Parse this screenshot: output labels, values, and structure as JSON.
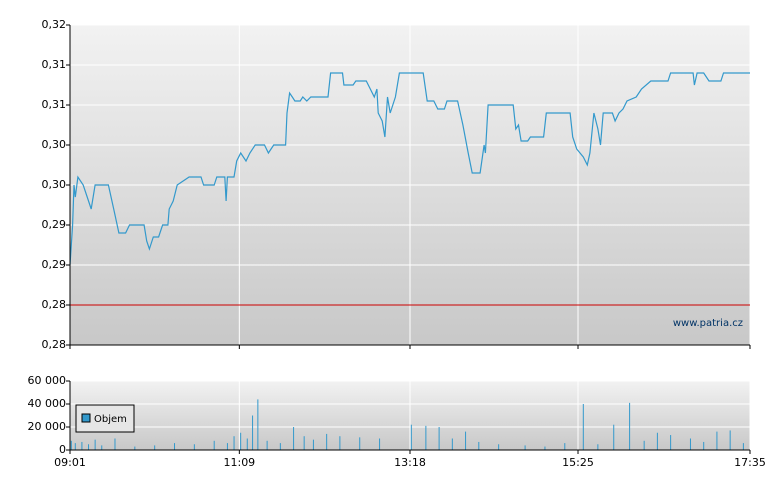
{
  "chart_data": [
    {
      "type": "line",
      "watermark": "www.patria.cz",
      "color": "#3399cc",
      "reference_line": 0.285,
      "reference_color": "#cc0000",
      "xlim": [
        "09:01",
        "17:35"
      ],
      "ylim": [
        0.28,
        0.32
      ],
      "yticks": [
        {
          "value": 0.28,
          "label": "0,28"
        },
        {
          "value": 0.285,
          "label": "0,28"
        },
        {
          "value": 0.29,
          "label": "0,29"
        },
        {
          "value": 0.295,
          "label": "0,29"
        },
        {
          "value": 0.3,
          "label": "0,30"
        },
        {
          "value": 0.305,
          "label": "0,30"
        },
        {
          "value": 0.31,
          "label": "0,31"
        },
        {
          "value": 0.315,
          "label": "0,31"
        },
        {
          "value": 0.32,
          "label": "0,32"
        }
      ],
      "grid": true,
      "x": [
        "09:01",
        "09:03",
        "09:04",
        "09:05",
        "09:07",
        "09:11",
        "09:17",
        "09:20",
        "09:30",
        "09:34",
        "09:38",
        "09:43",
        "09:46",
        "09:57",
        "09:59",
        "10:01",
        "10:04",
        "10:08",
        "10:11",
        "10:15",
        "10:16",
        "10:19",
        "10:22",
        "10:31",
        "10:40",
        "10:42",
        "10:50",
        "10:52",
        "10:58",
        "10:59",
        "11:00",
        "11:05",
        "11:07",
        "11:10",
        "11:14",
        "11:17",
        "11:21",
        "11:28",
        "11:31",
        "11:35",
        "11:44",
        "11:45",
        "11:47",
        "11:49",
        "11:51",
        "11:55",
        "11:57",
        "12:00",
        "12:03",
        "12:16",
        "12:18",
        "12:27",
        "12:28",
        "12:35",
        "12:37",
        "12:45",
        "12:48",
        "12:51",
        "12:53",
        "12:54",
        "12:57",
        "12:59",
        "13:01",
        "13:03",
        "13:07",
        "13:10",
        "13:28",
        "13:31",
        "13:36",
        "13:39",
        "13:44",
        "13:46",
        "13:54",
        "13:58",
        "14:02",
        "14:05",
        "14:11",
        "14:14",
        "14:15",
        "14:17",
        "14:36",
        "14:38",
        "14:40",
        "14:42",
        "14:47",
        "14:49",
        "14:59",
        "15:01",
        "15:19",
        "15:21",
        "15:24",
        "15:29",
        "15:32",
        "15:34",
        "15:37",
        "15:40",
        "15:42",
        "15:44",
        "15:51",
        "15:53",
        "15:56",
        "15:59",
        "16:02",
        "16:09",
        "16:13",
        "16:20",
        "16:33",
        "16:35",
        "16:46",
        "16:52",
        "16:53",
        "16:55",
        "17:00",
        "17:04",
        "17:13",
        "17:15",
        "17:35"
      ],
      "values": [
        0.29,
        0.295,
        0.3,
        0.2985,
        0.301,
        0.3,
        0.297,
        0.3,
        0.3,
        0.297,
        0.294,
        0.294,
        0.295,
        0.295,
        0.293,
        0.292,
        0.2935,
        0.2935,
        0.295,
        0.295,
        0.297,
        0.298,
        0.3,
        0.301,
        0.301,
        0.3,
        0.3,
        0.301,
        0.301,
        0.298,
        0.301,
        0.301,
        0.303,
        0.304,
        0.303,
        0.304,
        0.305,
        0.305,
        0.304,
        0.305,
        0.305,
        0.309,
        0.3115,
        0.311,
        0.3105,
        0.3105,
        0.311,
        0.3105,
        0.311,
        0.311,
        0.314,
        0.314,
        0.3125,
        0.3125,
        0.313,
        0.313,
        0.312,
        0.311,
        0.312,
        0.309,
        0.308,
        0.306,
        0.311,
        0.309,
        0.311,
        0.314,
        0.314,
        0.3105,
        0.3105,
        0.3095,
        0.3095,
        0.3105,
        0.3105,
        0.3075,
        0.304,
        0.3015,
        0.3015,
        0.305,
        0.304,
        0.31,
        0.31,
        0.307,
        0.3075,
        0.3055,
        0.3055,
        0.306,
        0.306,
        0.309,
        0.309,
        0.306,
        0.3045,
        0.3035,
        0.3025,
        0.304,
        0.309,
        0.307,
        0.305,
        0.309,
        0.309,
        0.308,
        0.309,
        0.3095,
        0.3105,
        0.311,
        0.312,
        0.313,
        0.313,
        0.314,
        0.314,
        0.314,
        0.3125,
        0.314,
        0.314,
        0.313,
        0.313,
        0.314,
        0.314
      ]
    },
    {
      "type": "bar",
      "color": "#3399cc",
      "legend": "Objem",
      "xlim": [
        "09:01",
        "17:35"
      ],
      "xticks": [
        "09:01",
        "11:09",
        "13:18",
        "15:25",
        "17:35"
      ],
      "ylim": [
        0,
        60000
      ],
      "yticks": [
        {
          "value": 0,
          "label": "0"
        },
        {
          "value": 20000,
          "label": "20 000"
        },
        {
          "value": 40000,
          "label": "40 000"
        },
        {
          "value": 60000,
          "label": "60 000"
        }
      ],
      "grid": true,
      "x": [
        "09:02",
        "09:05",
        "09:10",
        "09:15",
        "09:20",
        "09:25",
        "09:35",
        "09:50",
        "10:05",
        "10:20",
        "10:35",
        "10:50",
        "11:00",
        "11:05",
        "11:10",
        "11:15",
        "11:19",
        "11:23",
        "11:30",
        "11:40",
        "11:50",
        "11:58",
        "12:05",
        "12:15",
        "12:25",
        "12:40",
        "12:55",
        "13:19",
        "13:30",
        "13:40",
        "13:50",
        "14:00",
        "14:10",
        "14:25",
        "14:45",
        "15:00",
        "15:15",
        "15:29",
        "15:40",
        "15:52",
        "16:04",
        "16:15",
        "16:25",
        "16:35",
        "16:50",
        "17:00",
        "17:10",
        "17:20",
        "17:30"
      ],
      "values": [
        8000,
        6000,
        7000,
        5000,
        9000,
        4000,
        10000,
        3000,
        4000,
        6000,
        5000,
        8000,
        6000,
        12000,
        15000,
        10000,
        30000,
        44000,
        8000,
        6000,
        20000,
        12000,
        9000,
        14000,
        12000,
        11000,
        10000,
        22000,
        21000,
        20000,
        10000,
        16000,
        7000,
        5000,
        4000,
        3000,
        6000,
        40000,
        5000,
        22000,
        41000,
        8000,
        15000,
        13000,
        10000,
        7000,
        16000,
        17000,
        6000
      ]
    }
  ]
}
